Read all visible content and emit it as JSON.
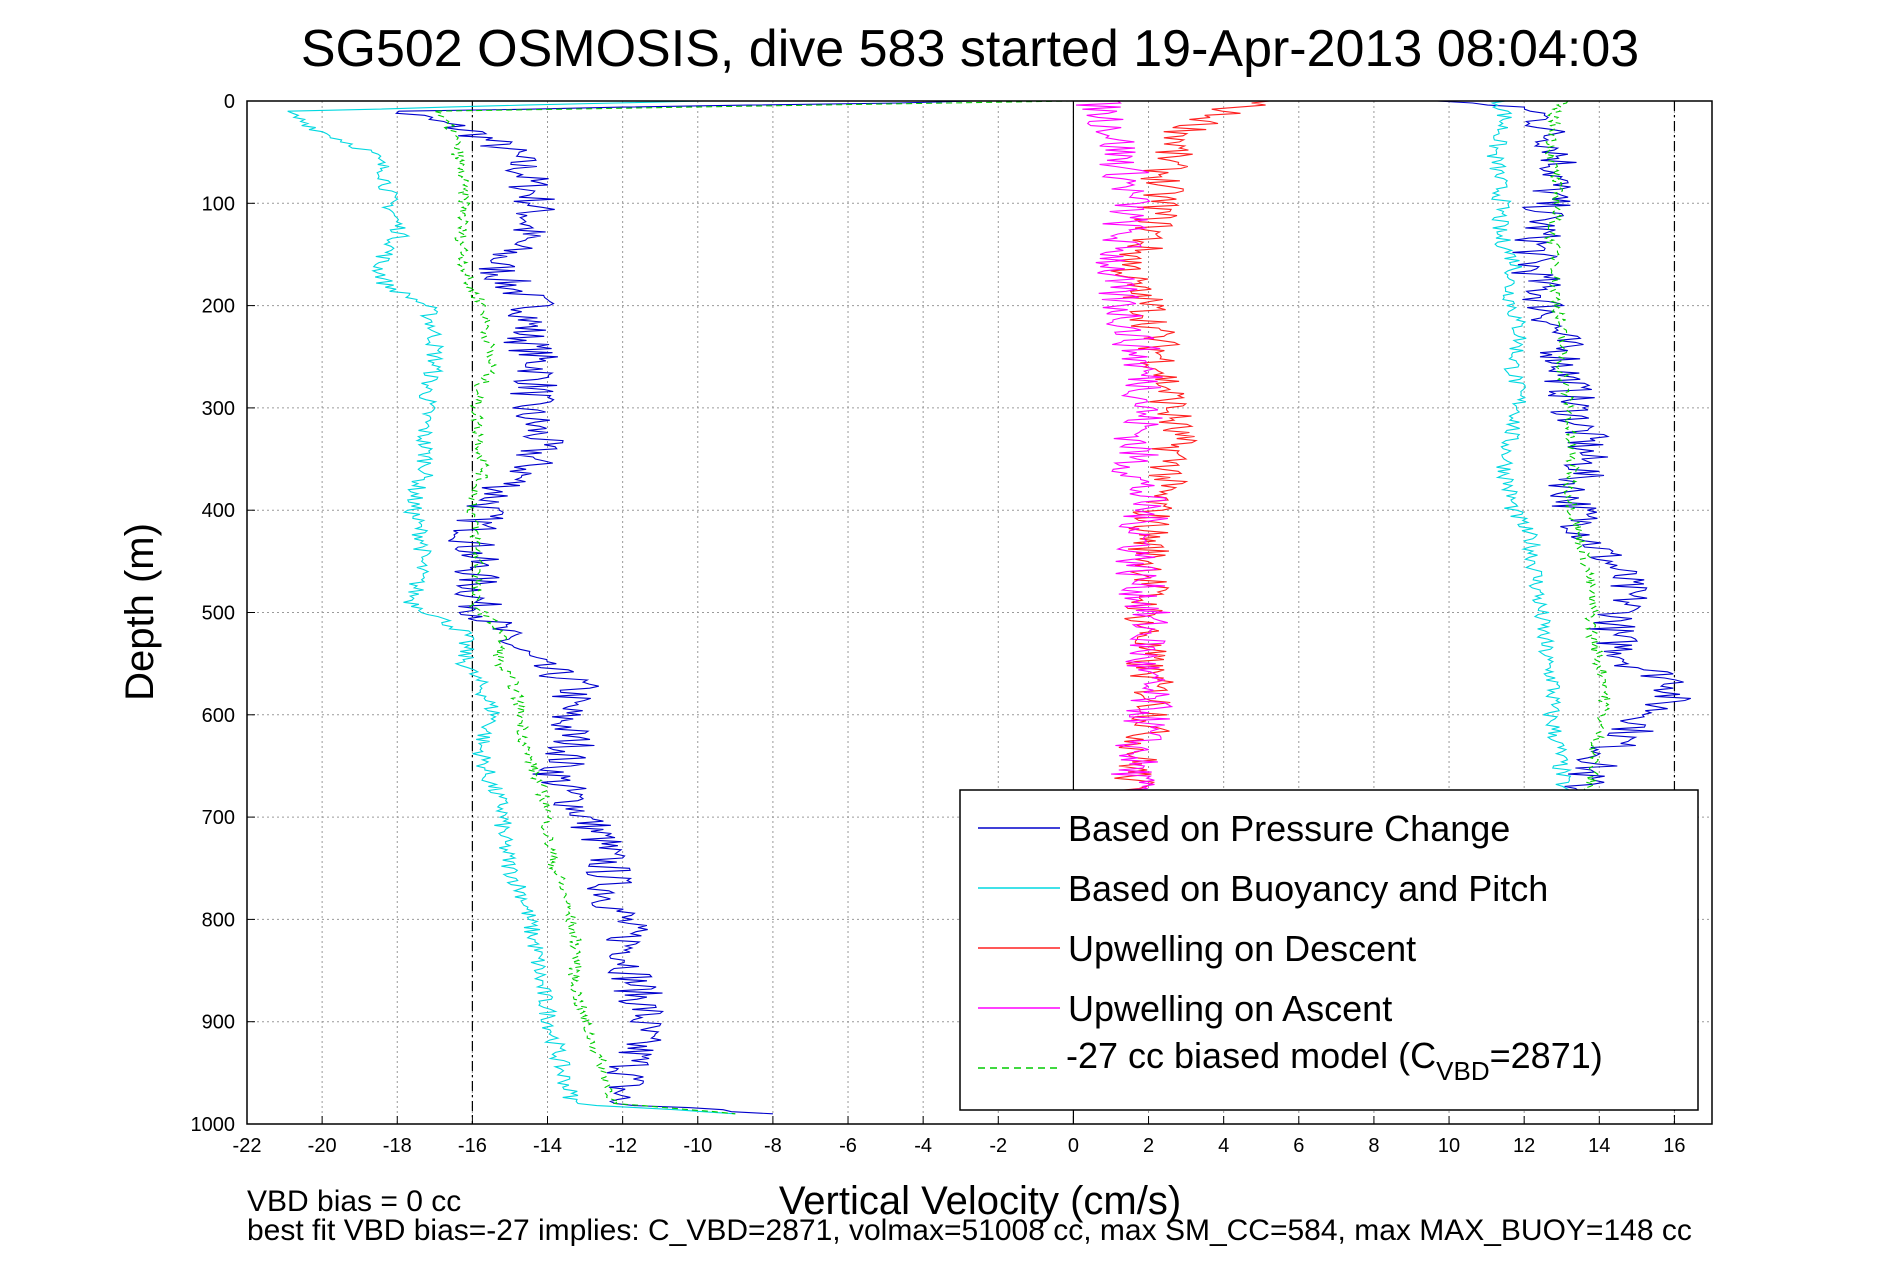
{
  "chart_data": {
    "type": "line",
    "title": "SG502 OSMOSIS, dive 583 started 19-Apr-2013 08:04:03",
    "xlabel": "Vertical Velocity (cm/s)",
    "ylabel": "Depth (m)",
    "xlim": [
      -22,
      17
    ],
    "ylim": [
      0,
      1000
    ],
    "y_reversed": true,
    "grid": true,
    "legend_position": "lower-right",
    "x_ticks": [
      "-22",
      "-20",
      "-18",
      "-16",
      "-14",
      "-12",
      "-10",
      "-8",
      "-6",
      "-4",
      "-2",
      "0",
      "2",
      "4",
      "6",
      "8",
      "10",
      "12",
      "14",
      "16"
    ],
    "y_ticks": [
      "0",
      "100",
      "200",
      "300",
      "400",
      "500",
      "600",
      "700",
      "800",
      "900",
      "1000"
    ],
    "reference_lines": [
      {
        "x": -16,
        "style": "dashdot"
      },
      {
        "x": 0,
        "style": "solid"
      },
      {
        "x": 16,
        "style": "dashdot"
      }
    ],
    "series": [
      {
        "name": "Based on Pressure Change",
        "color": "#0000cc",
        "depth": [
          0,
          10,
          30,
          50,
          70,
          100,
          130,
          160,
          180,
          200,
          230,
          260,
          280,
          300,
          330,
          360,
          380,
          400,
          430,
          460,
          490,
          520,
          550,
          570,
          600,
          630,
          660,
          690,
          720,
          750,
          780,
          800,
          830,
          860,
          890,
          920,
          950,
          980,
          990
        ],
        "descent": [
          -2,
          -18,
          -16,
          -15,
          -14.6,
          -14.3,
          -14.6,
          -15.4,
          -15,
          -14.3,
          -14.6,
          -14.2,
          -14.3,
          -14.6,
          -14.2,
          -14.5,
          -15.2,
          -15.7,
          -16,
          -15.9,
          -15.9,
          -15.3,
          -14.4,
          -13.2,
          -13.6,
          -13.3,
          -13.8,
          -13.2,
          -12.6,
          -12.4,
          -12.3,
          -12,
          -11.8,
          -11.7,
          -11.4,
          -11.6,
          -11.8,
          -12.2,
          -8
        ],
        "ascent": [
          10,
          12.4,
          12.6,
          13,
          12.9,
          12.6,
          12.4,
          12.2,
          12.4,
          12.6,
          12.9,
          13.1,
          13.2,
          13.3,
          13.6,
          13.6,
          13.2,
          13.4,
          13.8,
          14.5,
          14.8,
          14.3,
          14.9,
          16.2,
          15.4,
          14.4,
          13.6,
          13.4
        ]
      },
      {
        "name": "Based on Buoyancy and Pitch",
        "color": "#00d8e0",
        "depth": [
          0,
          10,
          30,
          50,
          70,
          100,
          130,
          160,
          180,
          200,
          230,
          260,
          280,
          300,
          330,
          360,
          380,
          400,
          430,
          460,
          490,
          520,
          550,
          570,
          600,
          630,
          660,
          690,
          720,
          750,
          780,
          800,
          830,
          860,
          890,
          920,
          950,
          980,
          990
        ],
        "descent": [
          -10,
          -21,
          -20,
          -18.7,
          -18.3,
          -18.2,
          -17.9,
          -18.5,
          -18.3,
          -17.2,
          -17,
          -17,
          -17.2,
          -17.2,
          -17.3,
          -17.2,
          -17.5,
          -17.6,
          -17.3,
          -17.4,
          -17.6,
          -16.2,
          -16.2,
          -15.8,
          -15.4,
          -15.8,
          -15.6,
          -15.2,
          -15.2,
          -15,
          -14.6,
          -14.5,
          -14.3,
          -14.2,
          -14,
          -13.8,
          -13.6,
          -13.3,
          -9
        ],
        "ascent": [
          11.3,
          11.5,
          11.4,
          11.2,
          11.3,
          11.4,
          11.3,
          11.8,
          11.6,
          11.7,
          11.9,
          11.7,
          11.8,
          11.9,
          11.6,
          11.5,
          11.6,
          11.7,
          12.2,
          12.3,
          12.4,
          12.5,
          12.6,
          12.8,
          12.7,
          12.9,
          13,
          13.1
        ]
      },
      {
        "name": "Upwelling on Descent",
        "color": "#ff2020",
        "depth": [
          0,
          10,
          30,
          50,
          70,
          100,
          130,
          160,
          180,
          200,
          230,
          260,
          280,
          300,
          330,
          360,
          380,
          400,
          430,
          460,
          490,
          520,
          550,
          570,
          600,
          630,
          660,
          690
        ],
        "values": [
          5,
          4,
          3,
          2.6,
          2.4,
          2.3,
          2.1,
          1.5,
          1.5,
          2,
          2.2,
          2.4,
          2.5,
          2.6,
          2.7,
          2.6,
          2.3,
          2.1,
          2,
          2.1,
          1.9,
          1.9,
          1.9,
          2.1,
          2.2,
          1.8,
          1.6,
          1.5
        ]
      },
      {
        "name": "Upwelling on Ascent",
        "color": "#ff00ff",
        "depth": [
          0,
          10,
          30,
          50,
          70,
          100,
          130,
          160,
          180,
          200,
          230,
          260,
          280,
          300,
          330,
          360,
          380,
          400,
          430,
          460,
          490,
          520,
          550,
          570,
          600,
          630,
          660,
          690
        ],
        "values": [
          0.6,
          0.8,
          1.1,
          1.2,
          1.4,
          1.5,
          1.3,
          1.1,
          1.0,
          1.3,
          1.6,
          1.8,
          2.0,
          1.9,
          1.7,
          1.6,
          1.8,
          1.9,
          1.8,
          1.7,
          1.9,
          2.0,
          1.8,
          1.9,
          2.0,
          1.7,
          1.6,
          1.5
        ]
      },
      {
        "name": "-27 cc biased model (C_VBD=2871)",
        "color": "#00cc00",
        "style": "dashed",
        "depth": [
          0,
          10,
          30,
          50,
          70,
          100,
          130,
          160,
          180,
          200,
          230,
          260,
          280,
          300,
          330,
          360,
          380,
          400,
          430,
          460,
          490,
          520,
          550,
          570,
          600,
          630,
          660,
          690,
          720,
          750,
          780,
          800,
          830,
          860,
          890,
          920,
          950,
          980,
          990
        ],
        "descent": [
          0,
          -17,
          -16.5,
          -16.4,
          -16.3,
          -16.2,
          -16.3,
          -16.2,
          -16.1,
          -15.7,
          -15.6,
          -15.5,
          -15.8,
          -15.9,
          -15.8,
          -15.7,
          -15.9,
          -16,
          -15.9,
          -15.8,
          -16,
          -15.2,
          -15.3,
          -14.9,
          -14.7,
          -14.6,
          -14.3,
          -14,
          -14,
          -13.8,
          -13.5,
          -13.4,
          -13.2,
          -13.3,
          -13.1,
          -12.8,
          -12.5,
          -12.2,
          -9
        ],
        "ascent": [
          13,
          12.8,
          12.8,
          12.7,
          12.8,
          12.9,
          12.7,
          12.9,
          12.8,
          12.9,
          13,
          13,
          13.1,
          13.2,
          13.2,
          13.3,
          13.2,
          13.3,
          13.5,
          13.7,
          13.8,
          13.8,
          14.0,
          14.2,
          14.1,
          13.9,
          13.8,
          13.6
        ]
      }
    ],
    "footer": [
      "VBD bias = 0 cc",
      "best fit VBD bias=-27 implies: C_VBD=2871, volmax=51008 cc, max SM_CC=584, max MAX_BUOY=148 cc"
    ]
  },
  "legend": {
    "labels": [
      "Based on Pressure Change",
      "Based on Buoyancy and Pitch",
      "Upwelling on Descent",
      "Upwelling on Ascent"
    ],
    "model_prefix": "-27 cc biased model (C",
    "model_sub": "VBD",
    "model_suffix": "=2871)"
  }
}
